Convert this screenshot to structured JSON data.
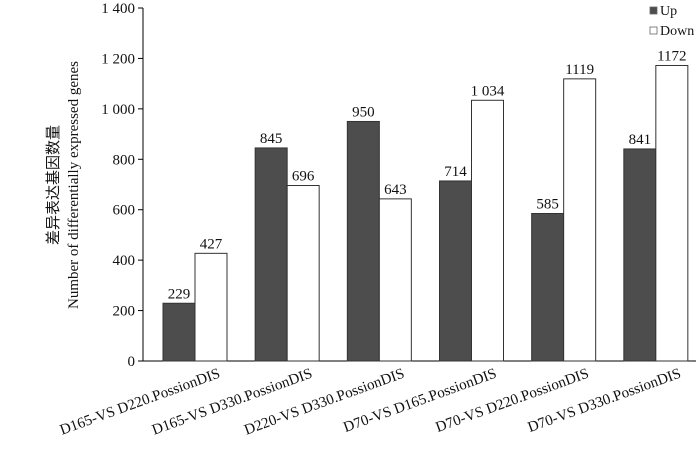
{
  "chart_data": {
    "type": "bar",
    "title": "",
    "xlabel": "",
    "ylabel_cn": "差异表达基因数量",
    "ylabel_en": "Number of differentially expressed genes",
    "categories": [
      "D165-VS D220.PossionDIS",
      "D165-VS D330.PossionDIS",
      "D220-VS D330.PossionDIS",
      "D70-VS D165.PossionDIS",
      "D70-VS D220.PossionDIS",
      "D70-VS D330.PossionDIS"
    ],
    "series": [
      {
        "name": "Up",
        "color": "#4d4d4d",
        "values": [
          229,
          845,
          950,
          714,
          585,
          841
        ],
        "labels": [
          "229",
          "845",
          "950",
          "714",
          "585",
          "841"
        ]
      },
      {
        "name": "Down",
        "color": "#ffffff",
        "values": [
          427,
          696,
          643,
          1034,
          1119,
          1172
        ],
        "labels": [
          "427",
          "696",
          "643",
          "1 034",
          "1119",
          "1172"
        ]
      }
    ],
    "ylim": [
      0,
      1400
    ],
    "yticks": [
      0,
      200,
      400,
      600,
      800,
      1000,
      1200,
      1400
    ],
    "ytick_labels": [
      "0",
      "200",
      "400",
      "600",
      "800",
      "1 000",
      "1 200",
      "1 400"
    ],
    "grid": false,
    "legend_position": "top-right"
  }
}
